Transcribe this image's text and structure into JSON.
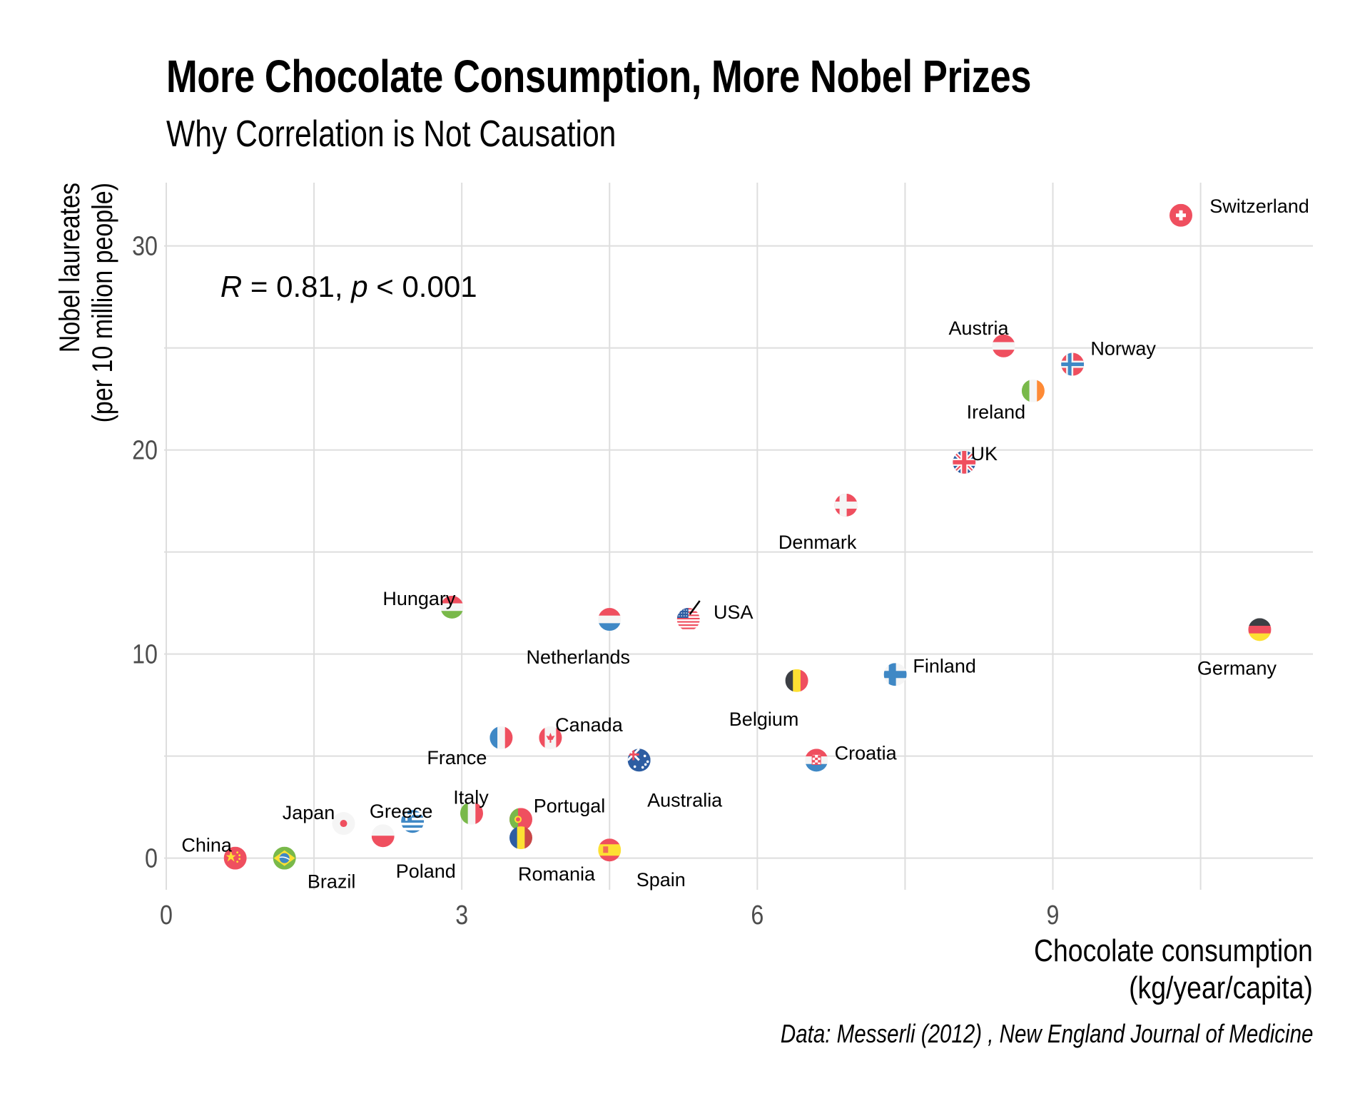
{
  "chart_data": {
    "type": "scatter",
    "title": "More Chocolate Consumption, More Nobel Prizes",
    "subtitle": "Why Correlation is Not Causation",
    "xlabel_lines": [
      "Chocolate consumption",
      "(kg/year/capita)"
    ],
    "ylabel_lines": [
      "Nobel laureates",
      "(per 10 million people)"
    ],
    "caption": "Data: Messerli (2012) , New England Journal of Medicine",
    "annotation": {
      "r_symbol": "R",
      "r_value": "0.81",
      "p_symbol": "p",
      "p_text": "0.001",
      "x": 0.55,
      "y": 27.5
    },
    "xlim": [
      0,
      11.64
    ],
    "ylim": [
      -1.55,
      33.1
    ],
    "x_ticks": [
      0,
      3,
      6,
      9
    ],
    "x_minor": [
      1.5,
      4.5,
      7.5,
      10.5
    ],
    "y_ticks": [
      0,
      10,
      20,
      30
    ],
    "y_minor": [
      5,
      15,
      25
    ],
    "grid": true,
    "legend": "none",
    "points": [
      {
        "country": "Switzerland",
        "x": 10.3,
        "y": 31.5,
        "flag": "ch"
      },
      {
        "country": "Austria",
        "x": 8.5,
        "y": 25.1,
        "flag": "at"
      },
      {
        "country": "Norway",
        "x": 9.2,
        "y": 24.2,
        "flag": "no"
      },
      {
        "country": "Ireland",
        "x": 8.8,
        "y": 22.9,
        "flag": "ie"
      },
      {
        "country": "UK",
        "x": 8.1,
        "y": 19.4,
        "flag": "gb"
      },
      {
        "country": "Denmark",
        "x": 6.9,
        "y": 17.3,
        "flag": "dk"
      },
      {
        "country": "Hungary",
        "x": 2.9,
        "y": 12.3,
        "flag": "hu"
      },
      {
        "country": "Netherlands",
        "x": 4.5,
        "y": 11.7,
        "flag": "nl"
      },
      {
        "country": "USA",
        "x": 5.3,
        "y": 11.7,
        "flag": "us"
      },
      {
        "country": "Germany",
        "x": 11.1,
        "y": 11.2,
        "flag": "de"
      },
      {
        "country": "Finland",
        "x": 7.4,
        "y": 9.0,
        "flag": "fi"
      },
      {
        "country": "Belgium",
        "x": 6.4,
        "y": 8.7,
        "flag": "be"
      },
      {
        "country": "France",
        "x": 3.4,
        "y": 5.9,
        "flag": "fr"
      },
      {
        "country": "Canada",
        "x": 3.9,
        "y": 5.9,
        "flag": "ca"
      },
      {
        "country": "Australia",
        "x": 4.8,
        "y": 4.8,
        "flag": "au"
      },
      {
        "country": "Croatia",
        "x": 6.6,
        "y": 4.8,
        "flag": "hr"
      },
      {
        "country": "Italy",
        "x": 3.1,
        "y": 2.2,
        "flag": "it"
      },
      {
        "country": "Portugal",
        "x": 3.6,
        "y": 1.9,
        "flag": "pt"
      },
      {
        "country": "Japan",
        "x": 1.8,
        "y": 1.7,
        "flag": "jp"
      },
      {
        "country": "Greece",
        "x": 2.5,
        "y": 1.8,
        "flag": "gr"
      },
      {
        "country": "Poland",
        "x": 2.2,
        "y": 1.1,
        "flag": "pl"
      },
      {
        "country": "Romania",
        "x": 3.6,
        "y": 1.0,
        "flag": "ro"
      },
      {
        "country": "Spain",
        "x": 4.5,
        "y": 0.4,
        "flag": "es"
      },
      {
        "country": "China",
        "x": 0.7,
        "y": 0.0,
        "flag": "cn"
      },
      {
        "country": "Brazil",
        "x": 1.2,
        "y": 0.0,
        "flag": "br"
      }
    ],
    "colors": {
      "red": "#ef4f5f",
      "white": "#f5f5f5",
      "blue": "#3f88c5",
      "darkblue": "#2d5da2",
      "green": "#79b94a",
      "yellow": "#fde033",
      "orange": "#fe8a35",
      "black": "#3c3f44",
      "gridline": "#dedede",
      "tick_text": "#4d4d4d"
    }
  }
}
